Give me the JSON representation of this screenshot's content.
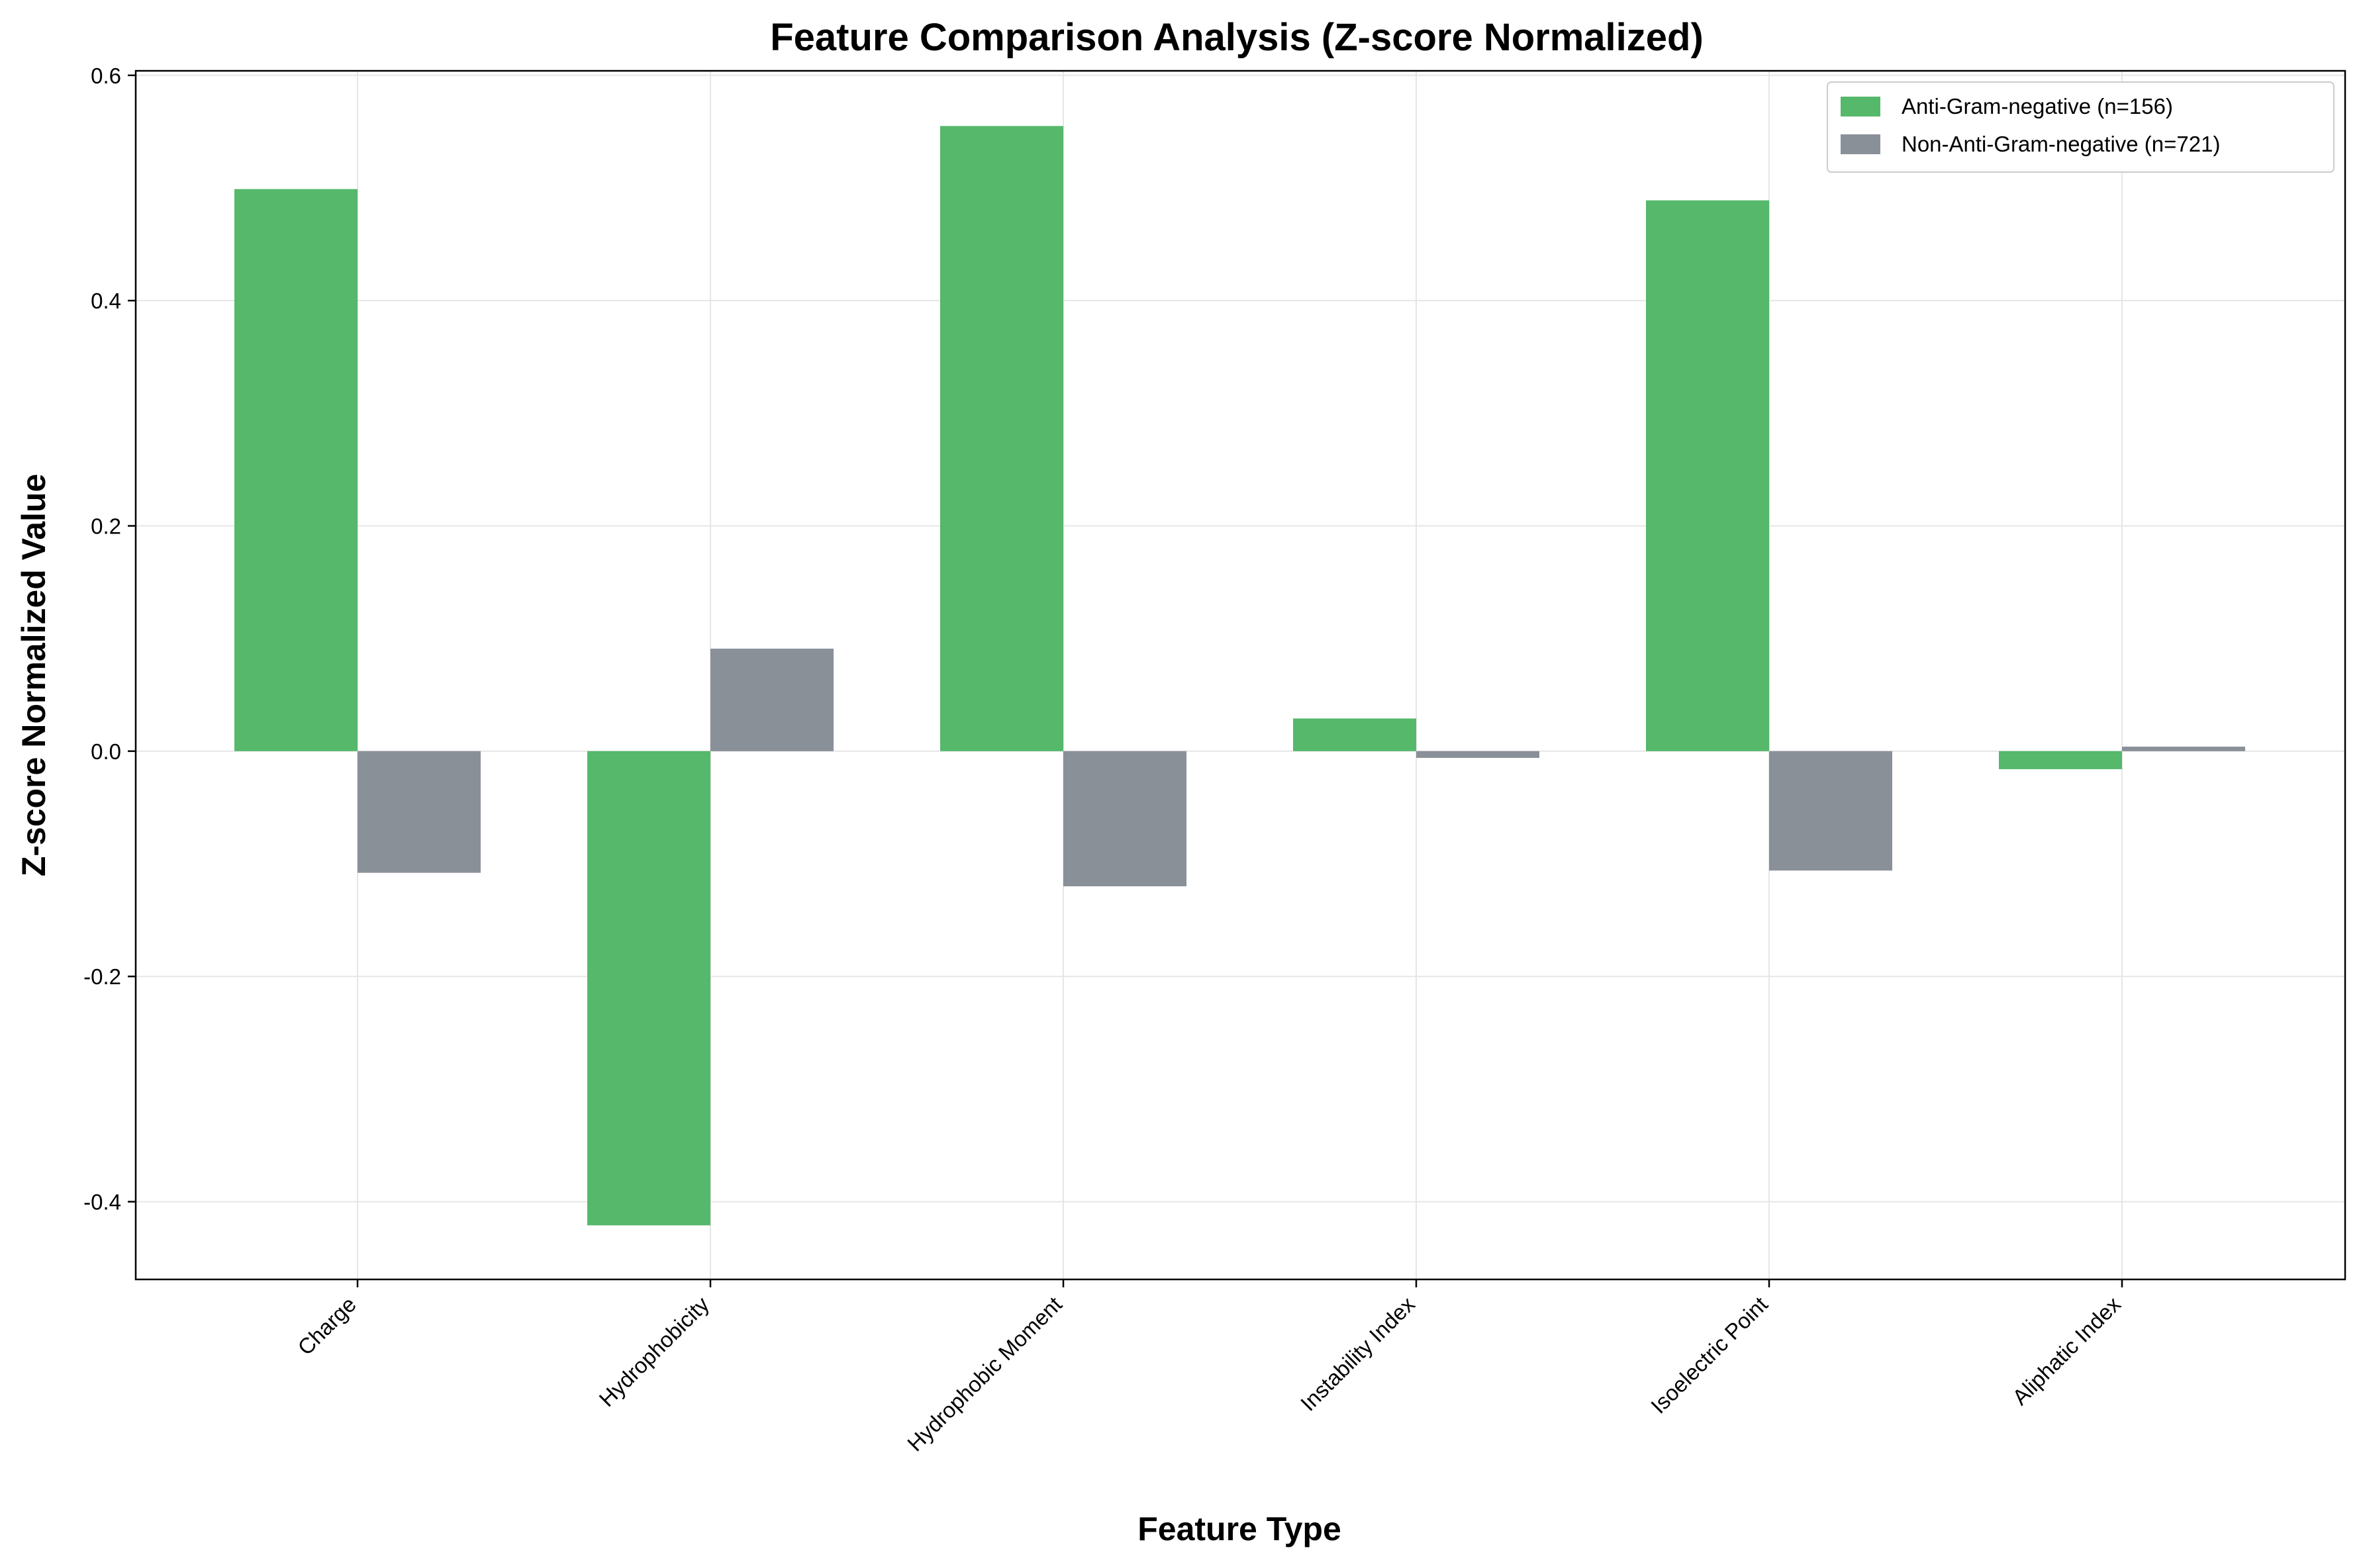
{
  "chart_data": {
    "type": "bar",
    "title": "Feature Comparison Analysis (Z-score Normalized)",
    "xlabel": "Feature Type",
    "ylabel": "Z-score Normalized Value",
    "categories": [
      "Charge",
      "Hydrophobicity",
      "Hydrophobic Moment",
      "Instability Index",
      "Isoelectric Point",
      "Aliphatic Index"
    ],
    "series": [
      {
        "name": "Anti-Gram-negative (n=156)",
        "color": "#55b86b",
        "values": [
          0.499,
          -0.421,
          0.555,
          0.029,
          0.489,
          -0.016
        ]
      },
      {
        "name": "Non-Anti-Gram-negative (n=721)",
        "color": "#8a9098",
        "values": [
          -0.108,
          0.091,
          -0.12,
          -0.006,
          -0.106,
          0.004
        ]
      }
    ],
    "ylim": [
      -0.469,
      0.604
    ],
    "yticks": [
      -0.4,
      -0.2,
      0.0,
      0.2,
      0.4,
      0.6
    ],
    "ytick_labels": [
      "-0.4",
      "-0.2",
      "0.0",
      "0.2",
      "0.4",
      "0.6"
    ],
    "grid": true,
    "legend_position": "top-right"
  }
}
